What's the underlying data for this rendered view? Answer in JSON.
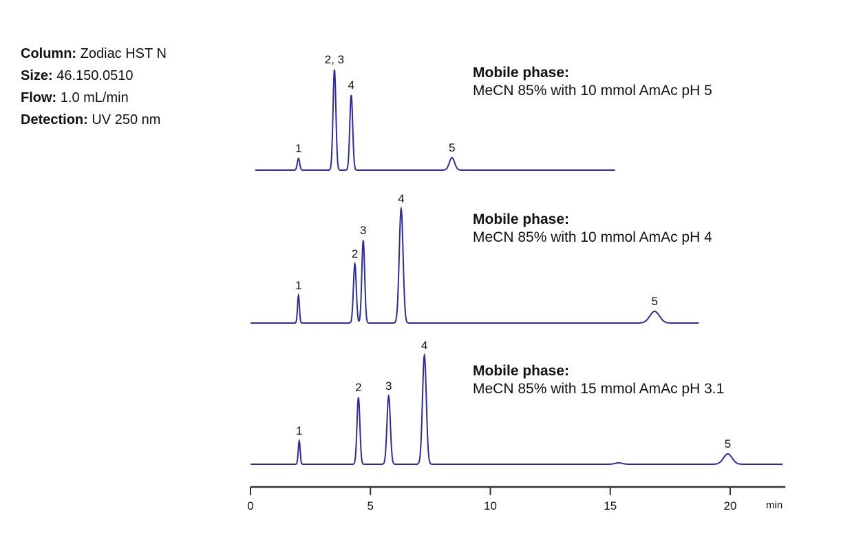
{
  "conditions": [
    {
      "label": "Column:",
      "value": "Zodiac HST N"
    },
    {
      "label": "Size:",
      "value": "46.150.0510"
    },
    {
      "label": "Flow:",
      "value": "1.0 mL/min"
    },
    {
      "label": "Detection:",
      "value": "UV 250 nm"
    }
  ],
  "chart_data": {
    "type": "line",
    "xlabel": "min",
    "xlim": [
      0,
      22.3
    ],
    "xticks": [
      0,
      5,
      10,
      15,
      20
    ],
    "y_axis_shown": false,
    "grid": false,
    "line_color": "#2b2ba6",
    "traces": [
      {
        "heading": "Mobile phase:",
        "condition": "MeCN 85% with 10 mmol AmAc pH 5",
        "x_range": [
          0.2,
          15.2
        ],
        "peaks": [
          {
            "label": "1",
            "rt": 2.0,
            "height": 17,
            "width": 0.05
          },
          {
            "label": "2, 3",
            "rt": 3.5,
            "height": 146,
            "width": 0.06
          },
          {
            "label": "4",
            "rt": 4.2,
            "height": 109,
            "width": 0.06
          },
          {
            "label": "5",
            "rt": 8.4,
            "height": 18,
            "width": 0.11
          }
        ]
      },
      {
        "heading": "Mobile phase:",
        "condition": "MeCN 85% with 10 mmol AmAc pH 4",
        "x_range": [
          0.0,
          18.7
        ],
        "peaks": [
          {
            "label": "1",
            "rt": 2.0,
            "height": 40,
            "width": 0.04
          },
          {
            "label": "2",
            "rt": 4.35,
            "height": 86,
            "width": 0.06
          },
          {
            "label": "3",
            "rt": 4.7,
            "height": 120,
            "width": 0.06
          },
          {
            "label": "4",
            "rt": 6.28,
            "height": 166,
            "width": 0.08
          },
          {
            "label": "5",
            "rt": 16.85,
            "height": 17,
            "width": 0.2
          }
        ]
      },
      {
        "heading": "Mobile phase:",
        "condition": "MeCN 85% with 15 mmol AmAc pH 3.1",
        "x_range": [
          0.0,
          22.2
        ],
        "peaks": [
          {
            "label": "1",
            "rt": 2.03,
            "height": 34,
            "width": 0.04
          },
          {
            "label": "2",
            "rt": 4.5,
            "height": 97,
            "width": 0.06
          },
          {
            "label": "3",
            "rt": 5.76,
            "height": 99,
            "width": 0.07
          },
          {
            "label": "4",
            "rt": 7.25,
            "height": 158,
            "width": 0.08
          },
          {
            "label": "",
            "rt": 15.35,
            "height": 2,
            "width": 0.15
          },
          {
            "label": "5",
            "rt": 19.9,
            "height": 15,
            "width": 0.18
          }
        ]
      }
    ]
  }
}
